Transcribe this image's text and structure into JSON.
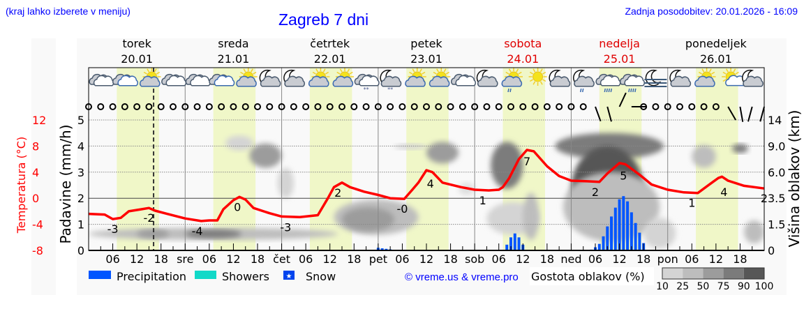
{
  "header": {
    "location_hint": "(kraj lahko izberete v meniju)",
    "title": "Zagreb 7 dni",
    "last_update": "Zadnja posodobitev: 20.01.2026 - 16:09"
  },
  "colors": {
    "temperature": "#ff0000",
    "precipitation": "#0055ff",
    "showers": "#11d9c8",
    "snow": "#0044ee",
    "daylight": "#f0f7c8",
    "header_text": "#0000ff",
    "weekend_text": "#e00000"
  },
  "days": [
    {
      "name": "torek",
      "date": "20.01",
      "weekend": false
    },
    {
      "name": "sreda",
      "date": "21.01",
      "weekend": false
    },
    {
      "name": "četrtek",
      "date": "22.01",
      "weekend": false
    },
    {
      "name": "petek",
      "date": "23.01",
      "weekend": false
    },
    {
      "name": "sobota",
      "date": "24.01",
      "weekend": true
    },
    {
      "name": "nedelja",
      "date": "25.01",
      "weekend": true
    },
    {
      "name": "ponedeljek",
      "date": "26.01",
      "weekend": false
    }
  ],
  "weather_icons": [
    "cloudy",
    "partly-cloudy",
    "sun-cloud",
    "cloudy",
    "cloudy",
    "partly-cloudy",
    "sun-cloud",
    "moon-cloud",
    "moon-cloud",
    "sun-cloud",
    "sun-cloud",
    "cloud-snow",
    "moon-cloud-snow",
    "sun-cloud",
    "sun-cloud",
    "cloudy",
    "moon-cloud",
    "sun-cloud-rain",
    "sun",
    "moon-cloud",
    "moon-cloud-rain",
    "cloud-rain",
    "cloud-rain",
    "moon-fog",
    "moon-cloud",
    "sun-cloud",
    "sun-small-cloud",
    "moon-cloud"
  ],
  "wind": {
    "interval_hours": 3,
    "barbs": [
      {
        "hour": 126,
        "direction_deg": 200
      },
      {
        "hour": 129,
        "direction_deg": 195
      },
      {
        "hour": 132,
        "direction_deg": 335
      },
      {
        "hour": 135,
        "direction_deg": 270
      },
      {
        "hour": 159,
        "direction_deg": 210
      },
      {
        "hour": 162,
        "direction_deg": 190
      },
      {
        "hour": 165,
        "direction_deg": 165
      },
      {
        "hour": 168,
        "direction_deg": 165
      }
    ],
    "calm_symbol": "circle"
  },
  "current_time_hour": 16.15,
  "chart_data": {
    "type": "meteogram",
    "x_unit": "hours from 20.01 00:00",
    "xlim": [
      0,
      168
    ],
    "x_tick_labels": [
      "06",
      "12",
      "18",
      "sre",
      "06",
      "12",
      "18",
      "čet",
      "06",
      "12",
      "18",
      "pet",
      "06",
      "12",
      "18",
      "sob",
      "06",
      "12",
      "18",
      "ned",
      "06",
      "12",
      "18",
      "pon",
      "06",
      "12",
      "18"
    ],
    "daylight_hours": [
      7,
      17.5
    ],
    "left_axis_temperature": {
      "label": "Temperatura (°C)",
      "ticks": [
        "12",
        "8",
        "4",
        "0",
        "-4",
        "-8"
      ],
      "ylim": [
        -8,
        12
      ]
    },
    "left_axis_precip": {
      "label": "Padavine (mm/h)",
      "ticks": [
        "0",
        "1",
        "2",
        "3",
        "4",
        "5"
      ],
      "ylim": [
        0,
        5
      ]
    },
    "right_axis_cloud": {
      "label": "Višina oblakov (km)",
      "ticks": [
        "0",
        "1.5",
        "3.5",
        "6.0",
        "9.0",
        "14"
      ],
      "values": [
        0,
        1.5,
        3.5,
        6.0,
        9.0,
        14
      ]
    },
    "grid": true,
    "temperature_series": {
      "hours": [
        0,
        4,
        6,
        8,
        10,
        13,
        15,
        16.5,
        19.5,
        24,
        28,
        30,
        32,
        33.5,
        36,
        37.5,
        39,
        41,
        45,
        48,
        52.5,
        57,
        59.5,
        61,
        63,
        65,
        68.5,
        72,
        75,
        78.5,
        80.5,
        82,
        84,
        85.5,
        88,
        92.6,
        96,
        99.5,
        102,
        103,
        104.6,
        107,
        109,
        110.7,
        114,
        117,
        120,
        124,
        127,
        129,
        132,
        133.5,
        137,
        140,
        144,
        148,
        151.5,
        155,
        156.6,
        157.5,
        159,
        163,
        168
      ],
      "values": [
        -2.4,
        -2.5,
        -3.2,
        -3.0,
        -2.0,
        -1.7,
        -1.5,
        -1.9,
        -2.4,
        -3.1,
        -3.5,
        -3.4,
        -3.4,
        -1.7,
        -0.3,
        0.2,
        -0.2,
        -1.5,
        -2.3,
        -2.8,
        -2.9,
        -2.6,
        0.0,
        1.7,
        2.4,
        1.7,
        1.0,
        0.5,
        0.0,
        -0.1,
        1.3,
        2.4,
        4.3,
        4.0,
        2.4,
        1.7,
        1.3,
        1.2,
        1.3,
        1.7,
        3.1,
        6.0,
        7.4,
        7.2,
        4.9,
        3.4,
        2.7,
        2.6,
        2.5,
        3.8,
        5.4,
        5.2,
        3.6,
        2.1,
        1.3,
        0.9,
        0.8,
        2.4,
        3.1,
        3.3,
        2.7,
        1.9,
        1.5
      ]
    },
    "temperature_labels": [
      {
        "hour": 6,
        "text": "-3"
      },
      {
        "hour": 15,
        "text": "-2"
      },
      {
        "hour": 27,
        "text": "-4"
      },
      {
        "hour": 37,
        "text": "0"
      },
      {
        "hour": 49,
        "text": "-3"
      },
      {
        "hour": 62,
        "text": "2"
      },
      {
        "hour": 78,
        "text": "-0"
      },
      {
        "hour": 85,
        "text": "4"
      },
      {
        "hour": 98,
        "text": "1"
      },
      {
        "hour": 109,
        "text": "7"
      },
      {
        "hour": 126,
        "text": "2"
      },
      {
        "hour": 133,
        "text": "5"
      },
      {
        "hour": 150,
        "text": "1"
      },
      {
        "hour": 158,
        "text": "4"
      },
      {
        "hour": 168,
        "text": "2"
      }
    ],
    "precipitation": {
      "hours": [
        72,
        73,
        74,
        75,
        104,
        105,
        106,
        107,
        108,
        125,
        126,
        127,
        128,
        129,
        130,
        131,
        132,
        133,
        134,
        135,
        136,
        137,
        138
      ],
      "values": [
        0.1,
        0.08,
        0.06,
        0.04,
        0.22,
        0.5,
        0.65,
        0.5,
        0.22,
        0.03,
        0.12,
        0.25,
        0.54,
        0.92,
        1.3,
        1.64,
        1.96,
        2.08,
        1.88,
        1.46,
        1.05,
        0.68,
        0.28
      ]
    },
    "cloud_density_patches": [
      {
        "hours": [
          0,
          62
        ],
        "km": [
          0.6,
          1.3
        ],
        "density": 50
      },
      {
        "hours": [
          24,
          38
        ],
        "km": [
          0.7,
          1.2
        ],
        "density": 90
      },
      {
        "hours": [
          12,
          20
        ],
        "km": [
          0.7,
          1.2
        ],
        "density": 75
      },
      {
        "hours": [
          34,
          41
        ],
        "km": [
          8.5,
          11
        ],
        "density": 25
      },
      {
        "hours": [
          40,
          48
        ],
        "km": [
          6.5,
          9.5
        ],
        "density": 75
      },
      {
        "hours": [
          47,
          51
        ],
        "km": [
          3.5,
          6.5
        ],
        "density": 25
      },
      {
        "hours": [
          61,
          82
        ],
        "km": [
          0.9,
          3.4
        ],
        "density": 50
      },
      {
        "hours": [
          63,
          76
        ],
        "km": [
          1.1,
          2.8
        ],
        "density": 75
      },
      {
        "hours": [
          76,
          84
        ],
        "km": [
          8.7,
          9.3
        ],
        "density": 25
      },
      {
        "hours": [
          84,
          92
        ],
        "km": [
          7,
          9.8
        ],
        "density": 75
      },
      {
        "hours": [
          92,
          96
        ],
        "km": [
          3.8,
          5
        ],
        "density": 10
      },
      {
        "hours": [
          100,
          108
        ],
        "km": [
          4.4,
          9.8
        ],
        "density": 90
      },
      {
        "hours": [
          99,
          112
        ],
        "km": [
          0.9,
          3.2
        ],
        "density": 25
      },
      {
        "hours": [
          108,
          112
        ],
        "km": [
          0.6,
          4
        ],
        "density": 50
      },
      {
        "hours": [
          116,
          143
        ],
        "km": [
          7.5,
          11.5
        ],
        "density": 90
      },
      {
        "hours": [
          120,
          138
        ],
        "km": [
          1,
          9
        ],
        "density": 100
      },
      {
        "hours": [
          118,
          142
        ],
        "km": [
          0.5,
          6
        ],
        "density": 50
      },
      {
        "hours": [
          138,
          146
        ],
        "km": [
          0.1,
          2
        ],
        "density": 25
      },
      {
        "hours": [
          150,
          156
        ],
        "km": [
          6.5,
          9.2
        ],
        "density": 50
      },
      {
        "hours": [
          160,
          164
        ],
        "km": [
          8.2,
          9.4
        ],
        "density": 90
      },
      {
        "hours": [
          163,
          168
        ],
        "km": [
          0.4,
          1.8
        ],
        "density": 50
      }
    ],
    "cloud_density_legend": {
      "label": "Gostota oblakov (%)",
      "ticks": [
        "10",
        "25",
        "50",
        "75",
        "90",
        "100"
      ],
      "colors": [
        "#d4d4d4",
        "#bdbdbd",
        "#9c9c9c",
        "#7b7b7b",
        "#575757"
      ]
    },
    "legend": [
      {
        "label": "Precipitation",
        "color": "#0055ff"
      },
      {
        "label": "Showers",
        "color": "#11d9c8"
      },
      {
        "label": "Snow",
        "color": "#0044ee"
      }
    ],
    "legend_position": "bottom"
  },
  "footer": {
    "copyright": "© vreme.us & vreme.pro"
  }
}
